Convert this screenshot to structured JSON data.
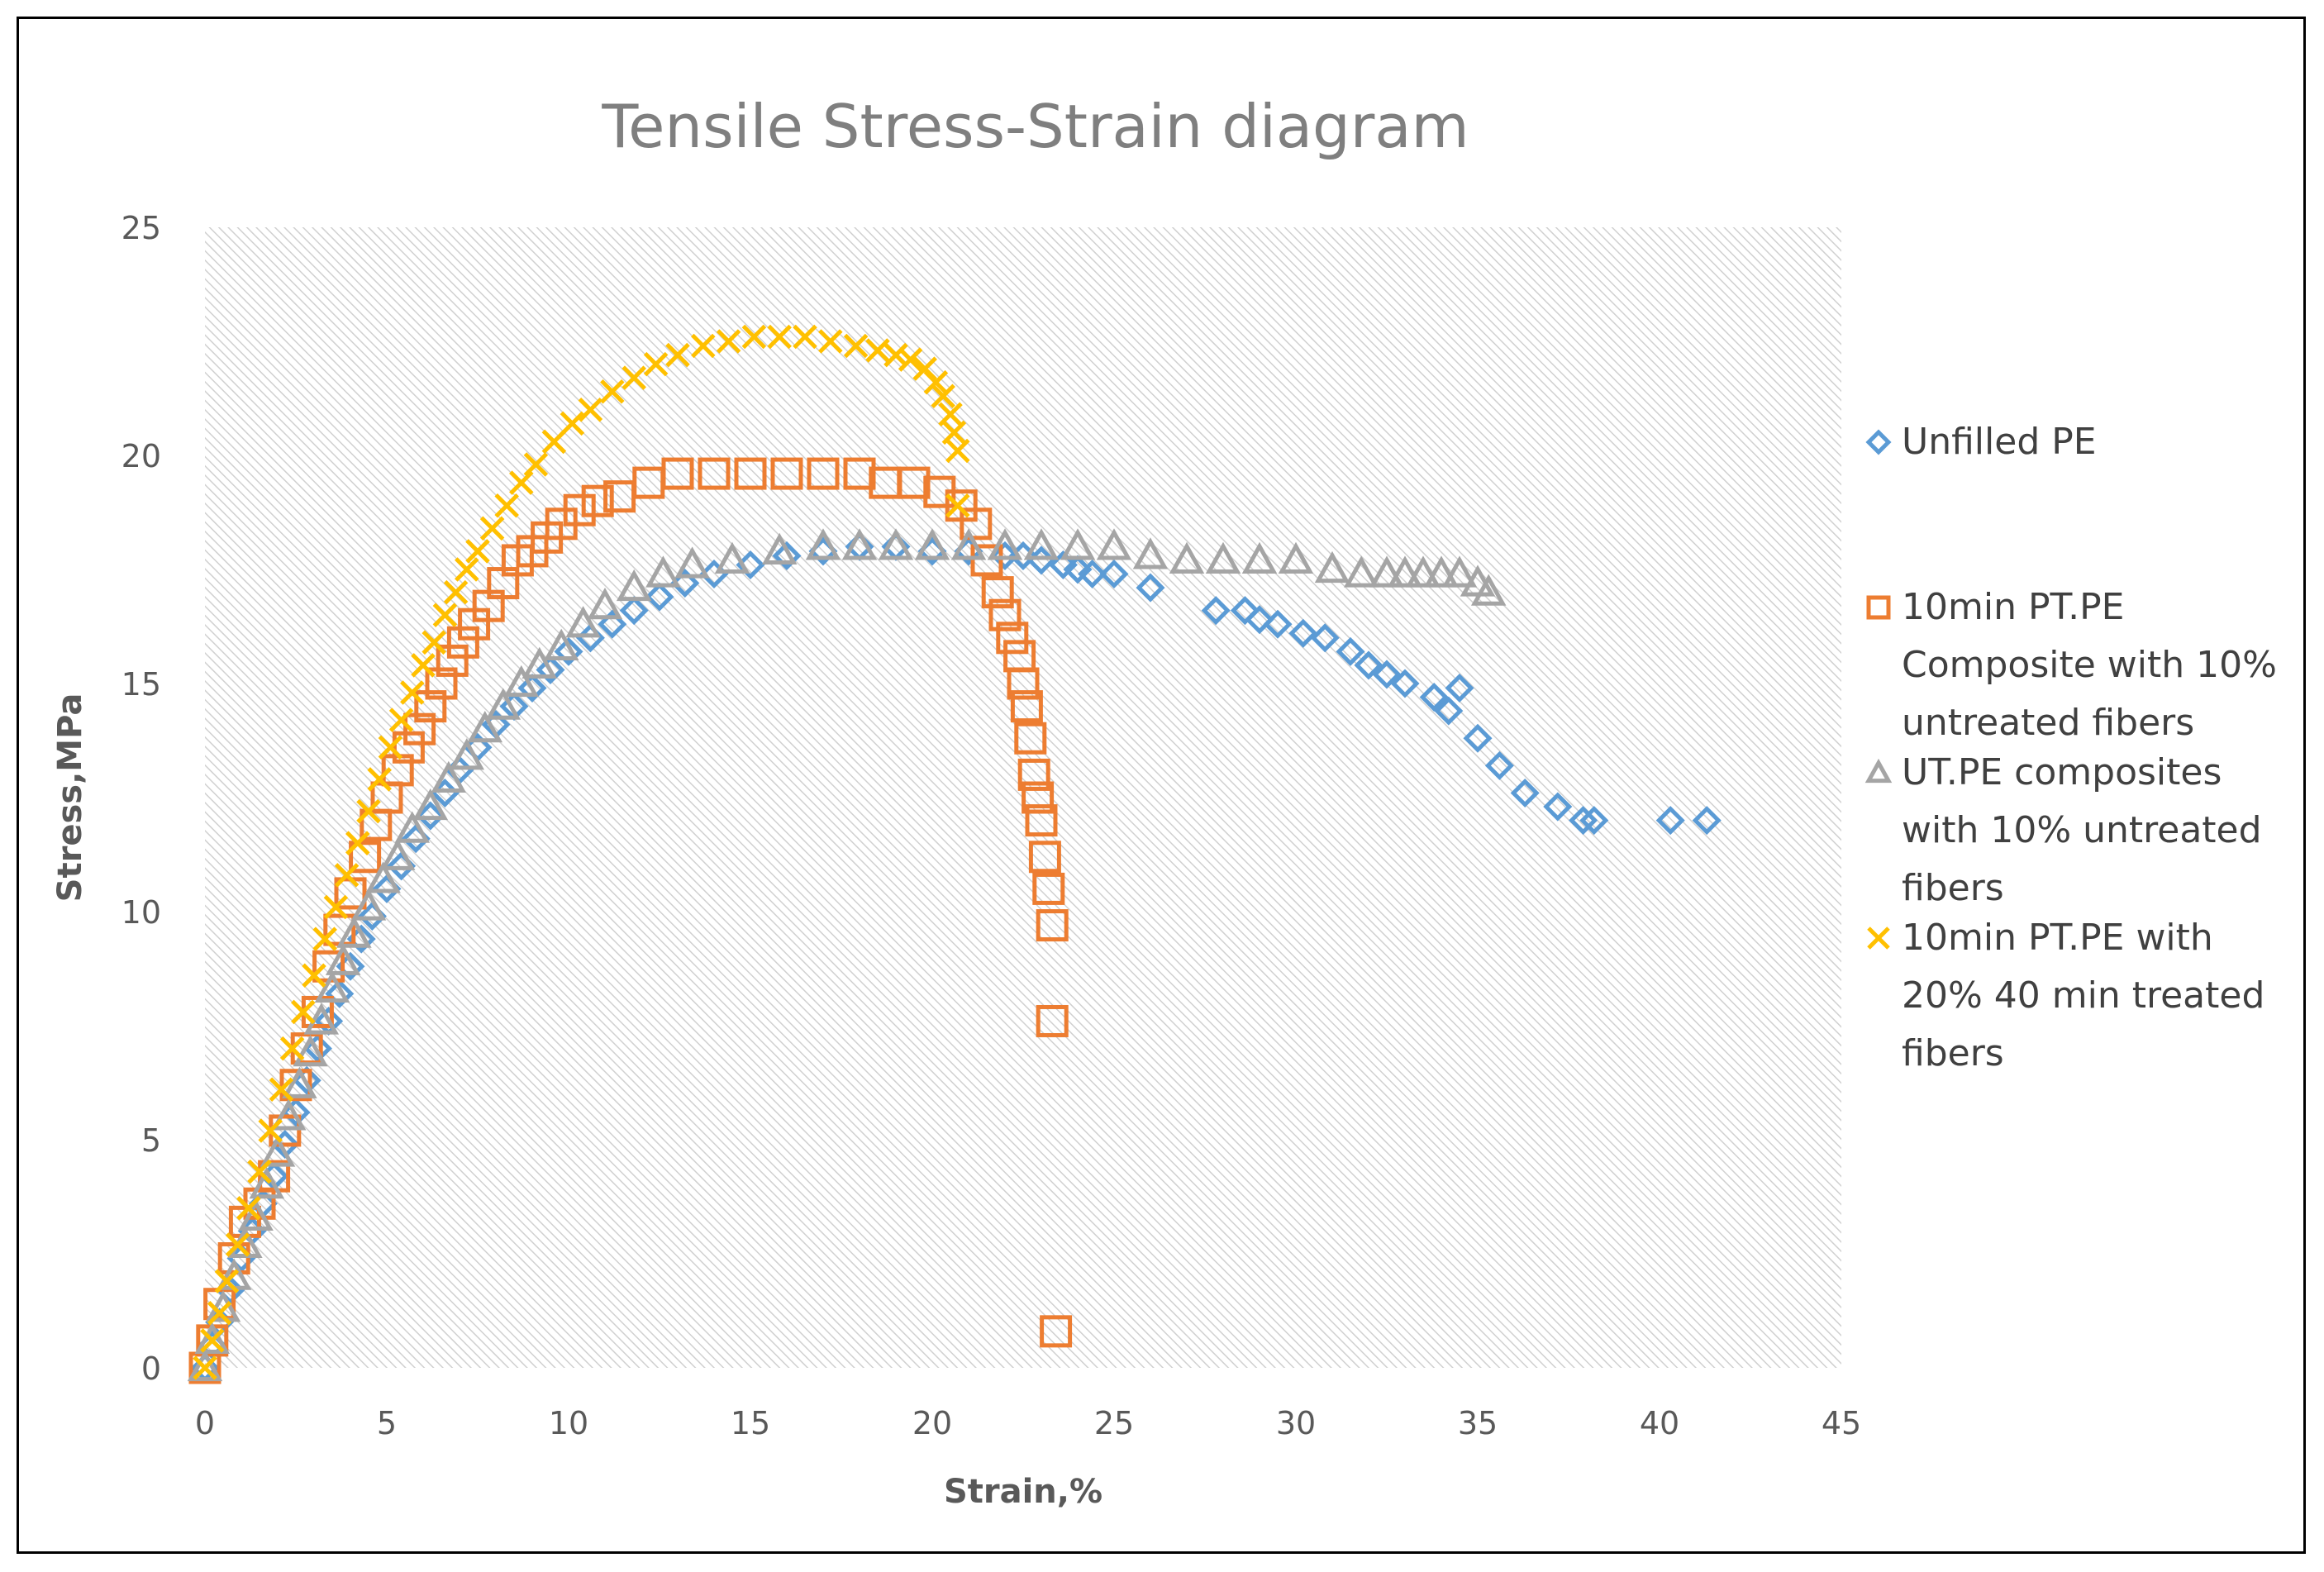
{
  "chart_data": {
    "type": "scatter",
    "title": "Tensile Stress-Strain diagram",
    "xlabel": "Strain,%",
    "ylabel": "Stress,MPa",
    "xlim": [
      0,
      45
    ],
    "ylim": [
      0,
      25
    ],
    "xticks": [
      0,
      5,
      10,
      15,
      20,
      25,
      30,
      35,
      40,
      45
    ],
    "yticks": [
      0,
      5,
      10,
      15,
      20,
      25
    ],
    "legend_position": "right",
    "colors": {
      "title": "#7f7f7f",
      "ticks": "#595959",
      "legend_text": "#404040",
      "plot_hatch": "#d9d9d9"
    },
    "series": [
      {
        "name": "Unfilled PE",
        "legend_lines": [
          "Unfilled PE"
        ],
        "marker": "diamond",
        "color": "#5b9bd5",
        "points": [
          [
            0,
            0
          ],
          [
            0.2,
            0.5
          ],
          [
            0.4,
            1
          ],
          [
            0.7,
            1.7
          ],
          [
            1.0,
            2.4
          ],
          [
            1.3,
            3.0
          ],
          [
            1.6,
            3.6
          ],
          [
            1.9,
            4.2
          ],
          [
            2.2,
            4.9
          ],
          [
            2.5,
            5.6
          ],
          [
            2.8,
            6.3
          ],
          [
            3.1,
            7.0
          ],
          [
            3.4,
            7.6
          ],
          [
            3.7,
            8.2
          ],
          [
            4.0,
            8.8
          ],
          [
            4.3,
            9.4
          ],
          [
            4.6,
            9.9
          ],
          [
            5.0,
            10.5
          ],
          [
            5.4,
            11.0
          ],
          [
            5.8,
            11.6
          ],
          [
            6.2,
            12.1
          ],
          [
            6.6,
            12.6
          ],
          [
            7.0,
            13.1
          ],
          [
            7.5,
            13.6
          ],
          [
            8.0,
            14.1
          ],
          [
            8.5,
            14.5
          ],
          [
            9.0,
            14.9
          ],
          [
            9.5,
            15.3
          ],
          [
            10.0,
            15.7
          ],
          [
            10.6,
            16.0
          ],
          [
            11.2,
            16.3
          ],
          [
            11.8,
            16.6
          ],
          [
            12.5,
            16.9
          ],
          [
            13.2,
            17.2
          ],
          [
            14.0,
            17.4
          ],
          [
            15.0,
            17.6
          ],
          [
            16.0,
            17.8
          ],
          [
            17.0,
            17.9
          ],
          [
            18.0,
            18.0
          ],
          [
            19.0,
            18.0
          ],
          [
            20.0,
            17.9
          ],
          [
            21.0,
            17.9
          ],
          [
            22.0,
            17.8
          ],
          [
            22.5,
            17.8
          ],
          [
            23.0,
            17.7
          ],
          [
            23.6,
            17.6
          ],
          [
            24.0,
            17.5
          ],
          [
            24.4,
            17.4
          ],
          [
            25.0,
            17.4
          ],
          [
            26.0,
            17.1
          ],
          [
            27.8,
            16.6
          ],
          [
            28.6,
            16.6
          ],
          [
            29.0,
            16.4
          ],
          [
            29.5,
            16.3
          ],
          [
            30.2,
            16.1
          ],
          [
            30.8,
            16.0
          ],
          [
            31.5,
            15.7
          ],
          [
            32.0,
            15.4
          ],
          [
            32.5,
            15.2
          ],
          [
            33.0,
            15.0
          ],
          [
            33.8,
            14.7
          ],
          [
            34.2,
            14.4
          ],
          [
            34.5,
            14.9
          ],
          [
            35.0,
            13.8
          ],
          [
            35.6,
            13.2
          ],
          [
            36.3,
            12.6
          ],
          [
            37.2,
            12.3
          ],
          [
            37.9,
            12.0
          ],
          [
            38.2,
            12.0
          ],
          [
            40.3,
            12.0
          ],
          [
            41.3,
            12.0
          ]
        ]
      },
      {
        "name": "10min PT.PE Composite with 10% untreated fibers",
        "legend_lines": [
          "10min PT.PE",
          "Composite with 10%",
          "untreated fibers"
        ],
        "marker": "square",
        "color": "#ed7d31",
        "points": [
          [
            0,
            0
          ],
          [
            0.2,
            0.6
          ],
          [
            0.4,
            1.4
          ],
          [
            0.8,
            2.4
          ],
          [
            1.1,
            3.2
          ],
          [
            1.5,
            3.6
          ],
          [
            1.9,
            4.2
          ],
          [
            2.2,
            5.2
          ],
          [
            2.5,
            6.2
          ],
          [
            2.8,
            7.0
          ],
          [
            3.1,
            7.8
          ],
          [
            3.4,
            8.8
          ],
          [
            3.7,
            9.6
          ],
          [
            4.0,
            10.4
          ],
          [
            4.4,
            11.2
          ],
          [
            4.7,
            11.9
          ],
          [
            5.0,
            12.5
          ],
          [
            5.3,
            13.1
          ],
          [
            5.6,
            13.6
          ],
          [
            5.9,
            14.0
          ],
          [
            6.2,
            14.5
          ],
          [
            6.5,
            15.0
          ],
          [
            6.8,
            15.5
          ],
          [
            7.1,
            15.9
          ],
          [
            7.4,
            16.3
          ],
          [
            7.8,
            16.7
          ],
          [
            8.2,
            17.2
          ],
          [
            8.6,
            17.7
          ],
          [
            9.0,
            17.9
          ],
          [
            9.4,
            18.2
          ],
          [
            9.8,
            18.5
          ],
          [
            10.3,
            18.8
          ],
          [
            10.8,
            19.0
          ],
          [
            11.4,
            19.1
          ],
          [
            12.2,
            19.4
          ],
          [
            13.0,
            19.6
          ],
          [
            14.0,
            19.6
          ],
          [
            15.0,
            19.6
          ],
          [
            16.0,
            19.6
          ],
          [
            17.0,
            19.6
          ],
          [
            18.0,
            19.6
          ],
          [
            18.7,
            19.4
          ],
          [
            19.5,
            19.4
          ],
          [
            20.2,
            19.2
          ],
          [
            20.8,
            18.9
          ],
          [
            21.2,
            18.5
          ],
          [
            21.5,
            17.7
          ],
          [
            21.8,
            17.0
          ],
          [
            22.0,
            16.5
          ],
          [
            22.2,
            16.0
          ],
          [
            22.4,
            15.6
          ],
          [
            22.5,
            15.0
          ],
          [
            22.6,
            14.5
          ],
          [
            22.7,
            13.8
          ],
          [
            22.8,
            13.0
          ],
          [
            22.9,
            12.5
          ],
          [
            23.0,
            12.0
          ],
          [
            23.1,
            11.2
          ],
          [
            23.2,
            10.5
          ],
          [
            23.3,
            9.7
          ],
          [
            23.3,
            7.6
          ],
          [
            23.4,
            0.8
          ]
        ]
      },
      {
        "name": "UT.PE composites with 10% untreated fibers",
        "legend_lines": [
          "UT.PE composites",
          "with 10% untreated",
          "fibers"
        ],
        "marker": "triangle",
        "color": "#a5a5a5",
        "points": [
          [
            0,
            0
          ],
          [
            0.2,
            0.6
          ],
          [
            0.5,
            1.3
          ],
          [
            0.8,
            2.0
          ],
          [
            1.1,
            2.7
          ],
          [
            1.4,
            3.3
          ],
          [
            1.7,
            4.0
          ],
          [
            2.0,
            4.7
          ],
          [
            2.3,
            5.5
          ],
          [
            2.6,
            6.2
          ],
          [
            2.9,
            6.9
          ],
          [
            3.2,
            7.6
          ],
          [
            3.5,
            8.3
          ],
          [
            3.8,
            8.9
          ],
          [
            4.1,
            9.5
          ],
          [
            4.5,
            10.1
          ],
          [
            4.9,
            10.7
          ],
          [
            5.3,
            11.2
          ],
          [
            5.7,
            11.8
          ],
          [
            6.2,
            12.3
          ],
          [
            6.7,
            12.9
          ],
          [
            7.2,
            13.4
          ],
          [
            7.7,
            14.0
          ],
          [
            8.2,
            14.5
          ],
          [
            8.7,
            15.0
          ],
          [
            9.2,
            15.4
          ],
          [
            9.8,
            15.8
          ],
          [
            10.4,
            16.3
          ],
          [
            11.0,
            16.7
          ],
          [
            11.8,
            17.1
          ],
          [
            12.6,
            17.4
          ],
          [
            13.4,
            17.6
          ],
          [
            14.5,
            17.7
          ],
          [
            15.8,
            17.9
          ],
          [
            17.0,
            18.0
          ],
          [
            18.0,
            18.0
          ],
          [
            19.0,
            18.0
          ],
          [
            20.0,
            18.0
          ],
          [
            21.0,
            18.0
          ],
          [
            22.0,
            18.0
          ],
          [
            23.0,
            18.0
          ],
          [
            24.0,
            18.0
          ],
          [
            25.0,
            18.0
          ],
          [
            26.0,
            17.8
          ],
          [
            27.0,
            17.7
          ],
          [
            28.0,
            17.7
          ],
          [
            29.0,
            17.7
          ],
          [
            30.0,
            17.7
          ],
          [
            31.0,
            17.5
          ],
          [
            31.8,
            17.4
          ],
          [
            32.5,
            17.4
          ],
          [
            33.0,
            17.4
          ],
          [
            33.5,
            17.4
          ],
          [
            34.0,
            17.4
          ],
          [
            34.5,
            17.4
          ],
          [
            35.0,
            17.2
          ],
          [
            35.3,
            17.0
          ]
        ]
      },
      {
        "name": "10min PT.PE with 20% 40 min treated fibers",
        "legend_lines": [
          "10min PT.PE with",
          "20% 40 min treated",
          "fibers"
        ],
        "marker": "x",
        "color": "#ffc000",
        "points": [
          [
            0,
            0
          ],
          [
            0.2,
            0.6
          ],
          [
            0.4,
            1.2
          ],
          [
            0.6,
            1.9
          ],
          [
            0.9,
            2.7
          ],
          [
            1.2,
            3.5
          ],
          [
            1.5,
            4.3
          ],
          [
            1.8,
            5.2
          ],
          [
            2.1,
            6.1
          ],
          [
            2.4,
            7.0
          ],
          [
            2.7,
            7.8
          ],
          [
            3.0,
            8.6
          ],
          [
            3.3,
            9.4
          ],
          [
            3.6,
            10.1
          ],
          [
            3.9,
            10.8
          ],
          [
            4.2,
            11.5
          ],
          [
            4.5,
            12.2
          ],
          [
            4.8,
            12.9
          ],
          [
            5.1,
            13.6
          ],
          [
            5.4,
            14.2
          ],
          [
            5.7,
            14.8
          ],
          [
            6.0,
            15.4
          ],
          [
            6.3,
            15.9
          ],
          [
            6.6,
            16.5
          ],
          [
            6.9,
            17.0
          ],
          [
            7.2,
            17.5
          ],
          [
            7.5,
            17.9
          ],
          [
            7.9,
            18.4
          ],
          [
            8.3,
            18.9
          ],
          [
            8.7,
            19.4
          ],
          [
            9.1,
            19.8
          ],
          [
            9.6,
            20.3
          ],
          [
            10.1,
            20.7
          ],
          [
            10.6,
            21.0
          ],
          [
            11.2,
            21.4
          ],
          [
            11.8,
            21.7
          ],
          [
            12.4,
            22.0
          ],
          [
            13.0,
            22.2
          ],
          [
            13.7,
            22.4
          ],
          [
            14.4,
            22.5
          ],
          [
            15.1,
            22.6
          ],
          [
            15.8,
            22.6
          ],
          [
            16.5,
            22.6
          ],
          [
            17.2,
            22.5
          ],
          [
            17.9,
            22.4
          ],
          [
            18.5,
            22.3
          ],
          [
            19.0,
            22.2
          ],
          [
            19.4,
            22.1
          ],
          [
            19.8,
            21.9
          ],
          [
            20.1,
            21.6
          ],
          [
            20.3,
            21.3
          ],
          [
            20.5,
            20.9
          ],
          [
            20.6,
            20.5
          ],
          [
            20.7,
            20.1
          ],
          [
            20.7,
            18.9
          ]
        ]
      }
    ]
  }
}
